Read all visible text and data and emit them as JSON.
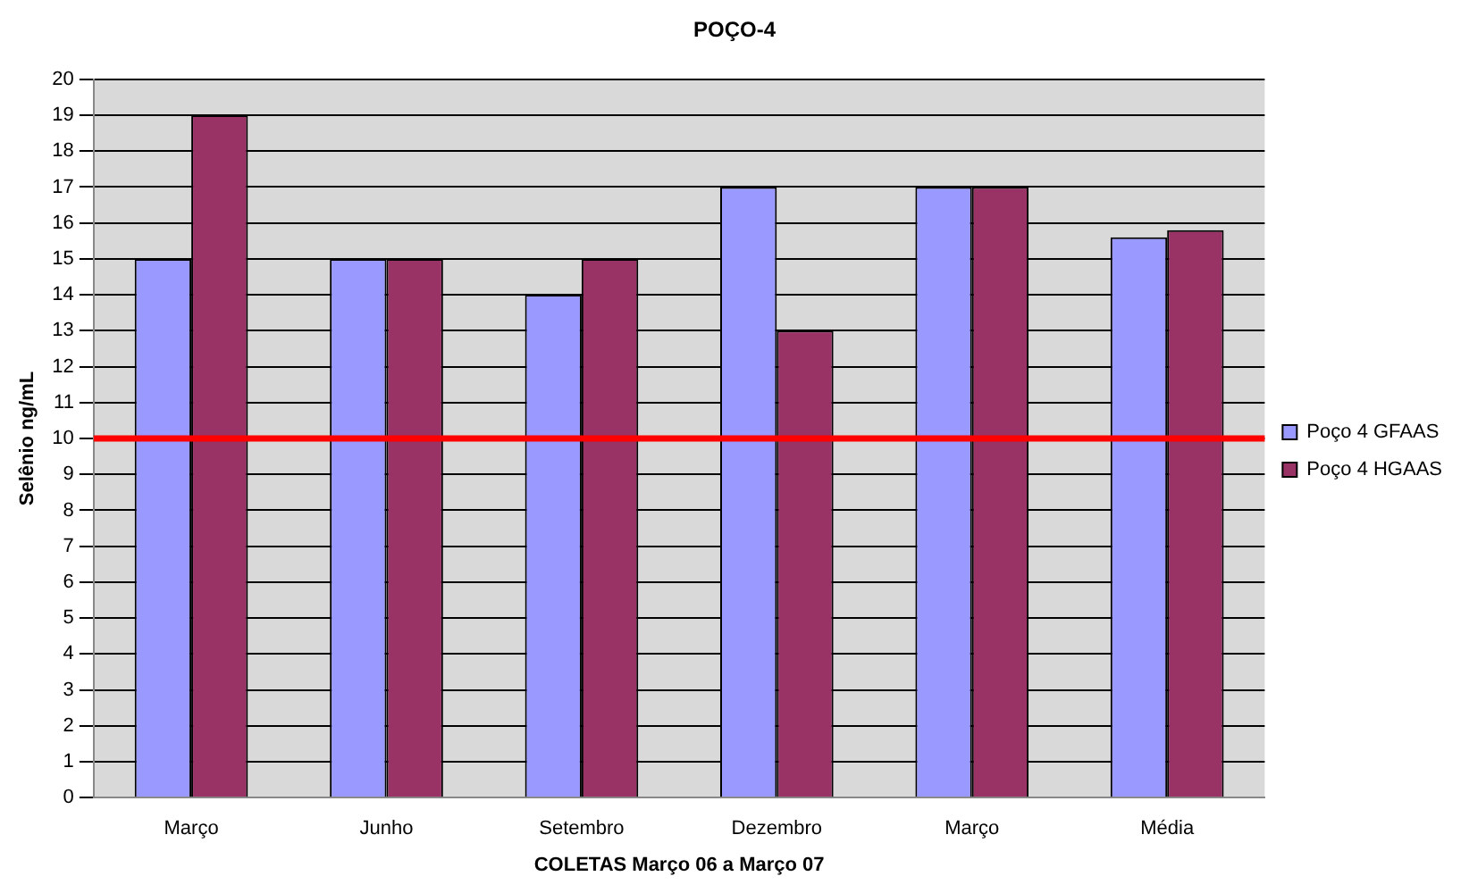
{
  "chart_data": {
    "type": "bar",
    "title": "POÇO-4",
    "xlabel": "COLETAS Março 06 a Março 07",
    "ylabel": "Selênio ng/mL",
    "categories": [
      "Março",
      "Junho",
      "Setembro",
      "Dezembro",
      "Março",
      "Média"
    ],
    "series": [
      {
        "name": "Poço 4 GFAAS",
        "color": "#9999ff",
        "values": [
          15,
          15,
          14,
          17,
          17,
          15.6
        ]
      },
      {
        "name": "Poço 4 HGAAS",
        "color": "#993366",
        "values": [
          19,
          15,
          15,
          13,
          17,
          15.8
        ]
      }
    ],
    "ylim": [
      0,
      20
    ],
    "yticks": [
      0,
      1,
      2,
      3,
      4,
      5,
      6,
      7,
      8,
      9,
      10,
      11,
      12,
      13,
      14,
      15,
      16,
      17,
      18,
      19,
      20
    ],
    "grid": "y",
    "legend": "right",
    "ref_lines": [
      {
        "axis": "y",
        "value": 10,
        "color": "#ff0000"
      }
    ]
  }
}
